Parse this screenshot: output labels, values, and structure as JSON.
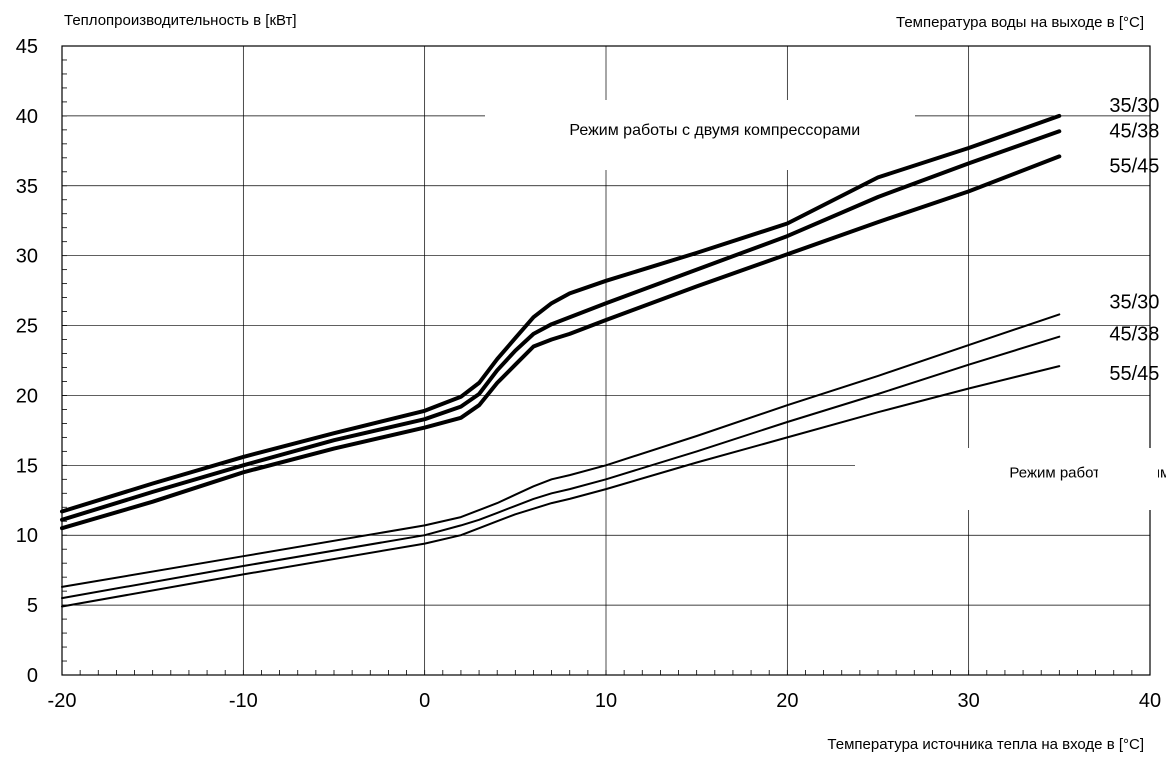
{
  "chart_data": {
    "type": "line",
    "ylabel": "Теплопроизводительность в [кВт]",
    "xlabel": "Температура источника тепла на входе в [°C]",
    "legend_title": "Температура воды на выходе в [°C]",
    "xlim": [
      -20,
      40
    ],
    "ylim": [
      0,
      45
    ],
    "x_ticks": [
      "-20",
      "-10",
      "0",
      "10",
      "20",
      "30",
      "40"
    ],
    "y_ticks": [
      "0",
      "5",
      "10",
      "15",
      "20",
      "25",
      "30",
      "35",
      "40",
      "45"
    ],
    "grid": true,
    "annotations": [
      {
        "text": "Режим работы с двумя компрессорами",
        "x": 16,
        "y": 39
      },
      {
        "text": "Режим работы с одним ком",
        "x": 37.5,
        "y": 14.5
      }
    ],
    "series": [
      {
        "name": "35/30",
        "group": "two compressors",
        "bold": true,
        "x": [
          -20,
          -15,
          -10,
          -5,
          0,
          2,
          3,
          4,
          5,
          6,
          7,
          8,
          10,
          15,
          20,
          25,
          30,
          35
        ],
        "y": [
          11.7,
          13.7,
          15.6,
          17.3,
          18.9,
          19.9,
          20.9,
          22.6,
          24.1,
          25.6,
          26.6,
          27.3,
          28.2,
          30.2,
          32.3,
          35.6,
          37.7,
          40.0
        ]
      },
      {
        "name": "45/38",
        "group": "two compressors",
        "bold": true,
        "x": [
          -20,
          -15,
          -10,
          -5,
          0,
          2,
          3,
          4,
          5,
          6,
          7,
          8,
          10,
          15,
          20,
          25,
          30,
          35
        ],
        "y": [
          11.1,
          13.1,
          15.0,
          16.8,
          18.3,
          19.2,
          20.1,
          21.8,
          23.2,
          24.4,
          25.1,
          25.6,
          26.6,
          29.0,
          31.4,
          34.2,
          36.6,
          38.9
        ]
      },
      {
        "name": "55/45",
        "group": "two compressors",
        "bold": true,
        "x": [
          -20,
          -15,
          -10,
          -5,
          0,
          2,
          3,
          4,
          5,
          6,
          7,
          8,
          10,
          15,
          20,
          25,
          30,
          35
        ],
        "y": [
          10.5,
          12.4,
          14.5,
          16.2,
          17.7,
          18.4,
          19.3,
          20.9,
          22.2,
          23.5,
          24.0,
          24.4,
          25.4,
          27.8,
          30.1,
          32.4,
          34.6,
          37.1
        ]
      },
      {
        "name": "35/30",
        "group": "one compressor",
        "bold": false,
        "x": [
          -20,
          -10,
          0,
          2,
          3,
          4,
          5,
          6,
          7,
          8,
          10,
          15,
          20,
          25,
          30,
          35
        ],
        "y": [
          6.3,
          8.5,
          10.7,
          11.3,
          11.8,
          12.3,
          12.9,
          13.5,
          14.0,
          14.3,
          15.0,
          17.1,
          19.3,
          21.4,
          23.6,
          25.8
        ]
      },
      {
        "name": "45/38",
        "group": "one compressor",
        "bold": false,
        "x": [
          -20,
          -10,
          0,
          2,
          3,
          4,
          5,
          6,
          7,
          8,
          10,
          15,
          20,
          25,
          30,
          35
        ],
        "y": [
          5.5,
          7.8,
          10.0,
          10.7,
          11.1,
          11.6,
          12.1,
          12.6,
          13.0,
          13.3,
          14.0,
          16.0,
          18.1,
          20.1,
          22.2,
          24.2
        ]
      },
      {
        "name": "55/45",
        "group": "one compressor",
        "bold": false,
        "x": [
          -20,
          -10,
          0,
          2,
          3,
          4,
          5,
          6,
          7,
          8,
          10,
          15,
          20,
          25,
          30,
          35
        ],
        "y": [
          4.9,
          7.2,
          9.4,
          10.0,
          10.5,
          11.0,
          11.5,
          11.9,
          12.3,
          12.6,
          13.3,
          15.2,
          17.0,
          18.8,
          20.5,
          22.1
        ]
      }
    ]
  }
}
